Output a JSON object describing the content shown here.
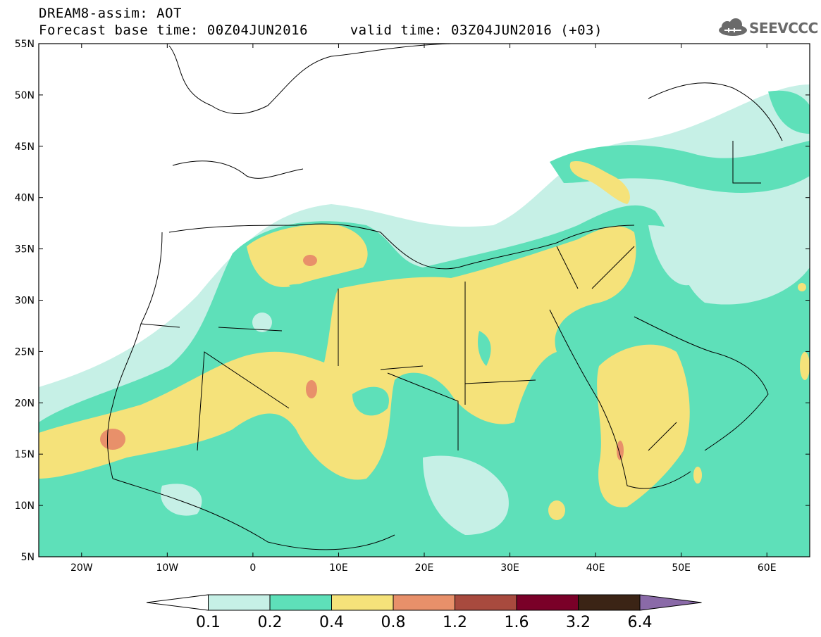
{
  "header": {
    "title_line1": "DREAM8-assim: AOT",
    "title_line2": "Forecast base time: 00Z04JUN2016     valid time: 03Z04JUN2016 (+03)",
    "logo_text": "SEEVCCC",
    "logo_icon": "cloud-icon"
  },
  "map": {
    "lat_labels": [
      "55N",
      "50N",
      "45N",
      "40N",
      "35N",
      "30N",
      "25N",
      "20N",
      "15N",
      "10N",
      "5N"
    ],
    "lon_labels": [
      "20W",
      "10W",
      "0",
      "10E",
      "20E",
      "30E",
      "40E",
      "50E",
      "60E"
    ],
    "extent": {
      "lon_min": -25,
      "lon_max": 65,
      "lat_min": 5,
      "lat_max": 55
    }
  },
  "colorbar": {
    "labels": [
      "0.1",
      "0.2",
      "0.4",
      "0.8",
      "1.2",
      "1.6",
      "3.2",
      "6.4"
    ],
    "colors": [
      "#ffffff",
      "#c6f0e6",
      "#5ee0b9",
      "#f5e27a",
      "#e8906a",
      "#a84a3e",
      "#7a0028",
      "#3b2415",
      "#8a6aa8"
    ]
  },
  "colors": {
    "low": "#c6f0e6",
    "mid": "#5ee0b9",
    "high": "#f5e27a",
    "peak": "#e8906a"
  }
}
